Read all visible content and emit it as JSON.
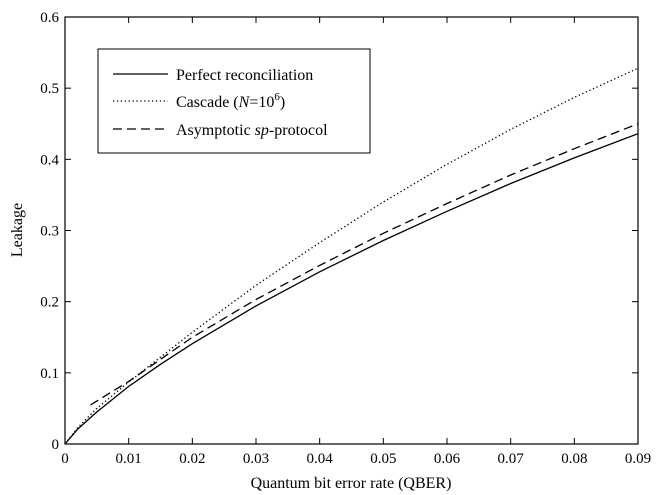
{
  "chart_data": {
    "type": "line",
    "xlabel": "Quantum bit error rate (QBER)",
    "ylabel": "Leakage",
    "xlim": [
      0,
      0.09
    ],
    "ylim": [
      0,
      0.6
    ],
    "x_ticks": [
      0,
      0.01,
      0.02,
      0.03,
      0.04,
      0.05,
      0.06,
      0.07,
      0.08,
      0.09
    ],
    "x_tick_labels": [
      "0",
      "0.01",
      "0.02",
      "0.03",
      "0.04",
      "0.05",
      "0.06",
      "0.07",
      "0.08",
      "0.09"
    ],
    "y_ticks": [
      0,
      0.1,
      0.2,
      0.3,
      0.4,
      0.5,
      0.6
    ],
    "y_tick_labels": [
      "0",
      "0.1",
      "0.2",
      "0.3",
      "0.4",
      "0.5",
      "0.6"
    ],
    "grid": false,
    "legend_position": "top-left",
    "series": [
      {
        "name": "Perfect reconciliation",
        "line_style": "solid",
        "x": [
          0,
          0.002,
          0.005,
          0.01,
          0.015,
          0.02,
          0.03,
          0.04,
          0.05,
          0.06,
          0.07,
          0.08,
          0.09
        ],
        "values": [
          0,
          0.021,
          0.045,
          0.081,
          0.112,
          0.141,
          0.194,
          0.242,
          0.286,
          0.327,
          0.366,
          0.402,
          0.436
        ]
      },
      {
        "name": "Cascade",
        "name_superscript": "6",
        "legend_parts": {
          "a": "Cascade (",
          "n": "N",
          "b": "=10",
          "sup": "6",
          "c": ")"
        },
        "line_style": "dotted",
        "x": [
          0,
          0.002,
          0.005,
          0.01,
          0.015,
          0.02,
          0.03,
          0.04,
          0.05,
          0.06,
          0.07,
          0.08,
          0.09
        ],
        "values": [
          0,
          0.023,
          0.05,
          0.087,
          0.122,
          0.157,
          0.223,
          0.283,
          0.34,
          0.393,
          0.442,
          0.487,
          0.528
        ]
      },
      {
        "name": "Asymptotic sp-protocol",
        "legend_parts": {
          "a": "Asymptotic ",
          "i": "sp",
          "b": "-protocol"
        },
        "line_style": "dashed",
        "x": [
          0.004,
          0.01,
          0.02,
          0.03,
          0.04,
          0.05,
          0.06,
          0.07,
          0.08,
          0.09
        ],
        "values": [
          0.055,
          0.088,
          0.15,
          0.203,
          0.251,
          0.296,
          0.338,
          0.378,
          0.415,
          0.45
        ]
      }
    ]
  }
}
